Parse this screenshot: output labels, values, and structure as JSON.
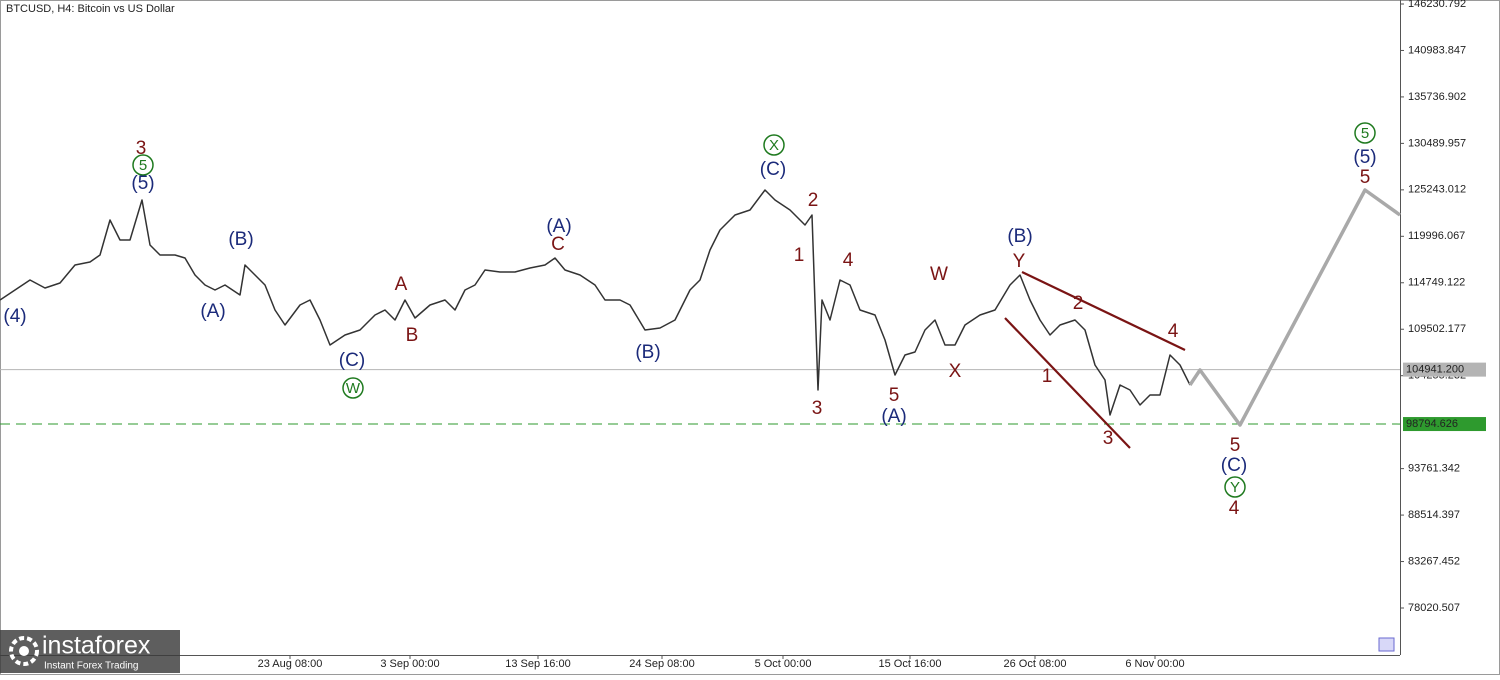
{
  "chart_data": {
    "type": "line",
    "title": "BTCUSD, H4:  Bitcoin vs US Dollar",
    "xlim": [
      0,
      700
    ],
    "ylim": [
      72713,
      146682
    ],
    "xticks": [
      {
        "value": 145,
        "label": "23 Aug 08:00"
      },
      {
        "value": 205,
        "label": "3 Sep 00:00"
      },
      {
        "value": 269,
        "label": "13 Sep 16:00"
      },
      {
        "value": 331,
        "label": "24 Sep 08:00"
      },
      {
        "value": 391.5,
        "label": "5 Oct 00:00"
      },
      {
        "value": 455,
        "label": "15 Oct 16:00"
      },
      {
        "value": 517.5,
        "label": "26 Oct 08:00"
      },
      {
        "value": 577.5,
        "label": "6 Nov 00:00"
      }
    ],
    "yticks": [
      146230.792,
      140983.847,
      135736.902,
      130489.957,
      125243.012,
      119996.067,
      114749.122,
      109502.177,
      104255.232,
      93761.342,
      88514.397,
      83267.452,
      78020.507
    ],
    "series": [
      {
        "color": "#333333",
        "width": 1.5,
        "x": [
          0,
          7.5,
          15,
          22.5,
          30,
          37.5,
          45,
          50,
          55,
          60,
          65,
          71,
          75,
          80,
          87.5,
          92.5,
          97.5,
          102.5,
          107.5,
          112.5,
          120,
          122.5,
          127.5,
          132.5,
          137.5,
          142.5,
          150,
          155,
          160,
          165,
          172.5,
          180,
          187.5,
          192.5,
          197.5,
          202.5,
          207.5,
          215,
          222.5,
          227.5,
          232.5,
          237.5,
          242.5,
          250,
          257.5,
          265,
          272.5,
          277.5,
          282.5,
          290,
          297.5,
          302.5,
          310,
          315,
          322.5,
          330,
          337.5,
          345,
          350,
          355,
          360,
          367.5,
          375,
          382.5,
          387.5,
          395,
          402.5,
          406,
          409,
          411,
          415,
          420,
          425,
          430,
          437.5,
          442.5,
          447.5,
          452.5,
          457.5,
          462.5,
          467.5,
          472.5,
          477.5,
          482.5,
          490,
          497.5,
          505,
          510,
          515,
          520,
          525,
          530,
          537.5,
          542.5,
          547.5,
          552.5,
          555,
          560,
          565,
          570,
          575,
          580,
          585,
          590,
          595
        ],
        "values": [
          112803,
          113932,
          115062,
          114158,
          114723,
          116756,
          117094,
          117885,
          121837,
          119579,
          119579,
          124096,
          119014,
          117885,
          117885,
          117546,
          115626,
          114497,
          113932,
          114497,
          113368,
          116756,
          115626,
          114497,
          111674,
          109980,
          112238,
          112803,
          110544,
          107721,
          108850,
          109415,
          111109,
          111674,
          110544,
          112803,
          110770,
          112238,
          112803,
          111674,
          113932,
          114497,
          116191,
          115965,
          115965,
          116417,
          116756,
          117546,
          116191,
          115626,
          114497,
          112803,
          112803,
          112238,
          109415,
          109641,
          110544,
          113932,
          115062,
          118449,
          120708,
          122402,
          122967,
          125225,
          124096,
          122967,
          121273,
          122402,
          102639,
          112803,
          110544,
          115062,
          114497,
          111674,
          111109,
          108286,
          104333,
          106592,
          106931,
          109415,
          110544,
          107721,
          107721,
          109980,
          111109,
          111674,
          114497,
          115626,
          112803,
          110544,
          108850,
          109980,
          110544,
          109415,
          105463,
          103769,
          99816,
          103204,
          102639,
          100945,
          102075,
          102075,
          106592,
          105463,
          103204
        ]
      },
      {
        "color": "#a9a9a9",
        "width": 3.5,
        "x": [
          595,
          600,
          620,
          682.5,
          700
        ],
        "values": [
          103204,
          104898,
          98687,
          125225,
          122402
        ]
      }
    ],
    "trend_lines": [
      {
        "color": "#7a1414",
        "x": [
          511,
          592.5
        ],
        "values": [
          115965,
          107157
        ]
      },
      {
        "color": "#7a1414",
        "x": [
          502.5,
          565
        ],
        "values": [
          110770,
          96091
        ]
      }
    ],
    "price_lines": [
      {
        "value": 104941.2,
        "label": "104941.200",
        "color": "#b4b4b4",
        "text_color": "#222222",
        "style": "solid"
      },
      {
        "value": 98794.626,
        "label": "98794.626",
        "color": "#2e9a2e",
        "text_color": "#ffffff",
        "style": "dashed"
      }
    ],
    "annotations": [
      {
        "text": "(4)",
        "x": 7.5,
        "y": 110996,
        "color": "#1b2a7a",
        "circled": false
      },
      {
        "text": "3",
        "x": 70.5,
        "y": 129968,
        "color": "#7a1414",
        "circled": false
      },
      {
        "text": "5",
        "x": 71.5,
        "y": 128049,
        "color": "#1f7a1f",
        "circled": true
      },
      {
        "text": "(5)",
        "x": 71.5,
        "y": 126016,
        "color": "#1b2a7a",
        "circled": false
      },
      {
        "text": "(B)",
        "x": 120.5,
        "y": 119692,
        "color": "#1b2a7a",
        "circled": false
      },
      {
        "text": "(A)",
        "x": 106.5,
        "y": 111561,
        "color": "#1b2a7a",
        "circled": false
      },
      {
        "text": "(C)",
        "x": 176,
        "y": 106027,
        "color": "#1b2a7a",
        "circled": false
      },
      {
        "text": "W",
        "x": 176.5,
        "y": 102865,
        "color": "#1f7a1f",
        "circled": true
      },
      {
        "text": "A",
        "x": 200.5,
        "y": 114610,
        "color": "#7a1414",
        "circled": false
      },
      {
        "text": "B",
        "x": 206,
        "y": 108850,
        "color": "#7a1414",
        "circled": false
      },
      {
        "text": "(A)",
        "x": 279.5,
        "y": 121160,
        "color": "#1b2a7a",
        "circled": false
      },
      {
        "text": "C",
        "x": 279,
        "y": 119127,
        "color": "#7a1414",
        "circled": false
      },
      {
        "text": "(B)",
        "x": 324,
        "y": 106931,
        "color": "#1b2a7a",
        "circled": false
      },
      {
        "text": "X",
        "x": 387,
        "y": 130307,
        "color": "#1f7a1f",
        "circled": true
      },
      {
        "text": "(C)",
        "x": 386.5,
        "y": 127597,
        "color": "#1b2a7a",
        "circled": false
      },
      {
        "text": "2",
        "x": 406.5,
        "y": 124096,
        "color": "#7a1414",
        "circled": false
      },
      {
        "text": "1",
        "x": 399.5,
        "y": 117885,
        "color": "#7a1414",
        "circled": false
      },
      {
        "text": "3",
        "x": 408.5,
        "y": 100607,
        "color": "#7a1414",
        "circled": false
      },
      {
        "text": "4",
        "x": 424,
        "y": 117320,
        "color": "#7a1414",
        "circled": false
      },
      {
        "text": "5",
        "x": 447,
        "y": 102075,
        "color": "#7a1414",
        "circled": false
      },
      {
        "text": "(A)",
        "x": 447,
        "y": 99703,
        "color": "#1b2a7a",
        "circled": false
      },
      {
        "text": "W",
        "x": 469.5,
        "y": 115739,
        "color": "#7a1414",
        "circled": false
      },
      {
        "text": "X",
        "x": 477.5,
        "y": 104785,
        "color": "#7a1414",
        "circled": false
      },
      {
        "text": "(B)",
        "x": 510,
        "y": 120031,
        "color": "#1b2a7a",
        "circled": false
      },
      {
        "text": "Y",
        "x": 509.5,
        "y": 117207,
        "color": "#7a1414",
        "circled": false
      },
      {
        "text": "2",
        "x": 539,
        "y": 112464,
        "color": "#7a1414",
        "circled": false
      },
      {
        "text": "1",
        "x": 523.5,
        "y": 104220,
        "color": "#7a1414",
        "circled": false
      },
      {
        "text": "3",
        "x": 554,
        "y": 97219,
        "color": "#7a1414",
        "circled": false
      },
      {
        "text": "4",
        "x": 586.5,
        "y": 109302,
        "color": "#7a1414",
        "circled": false
      },
      {
        "text": "5",
        "x": 617.5,
        "y": 96428,
        "color": "#7a1414",
        "circled": false
      },
      {
        "text": "(C)",
        "x": 617,
        "y": 94170,
        "color": "#1b2a7a",
        "circled": false
      },
      {
        "text": "Y",
        "x": 617.5,
        "y": 91685,
        "color": "#1f7a1f",
        "circled": true
      },
      {
        "text": "4",
        "x": 617,
        "y": 89314,
        "color": "#7a1414",
        "circled": false
      },
      {
        "text": "5",
        "x": 682.5,
        "y": 131662,
        "color": "#1f7a1f",
        "circled": true
      },
      {
        "text": "(5)",
        "x": 682.5,
        "y": 128952,
        "color": "#1b2a7a",
        "circled": false
      },
      {
        "text": "5",
        "x": 682.5,
        "y": 126693,
        "color": "#7a1414",
        "circled": false
      }
    ],
    "watermark": {
      "brand": "instaforex",
      "tagline": "Instant Forex Trading"
    }
  }
}
